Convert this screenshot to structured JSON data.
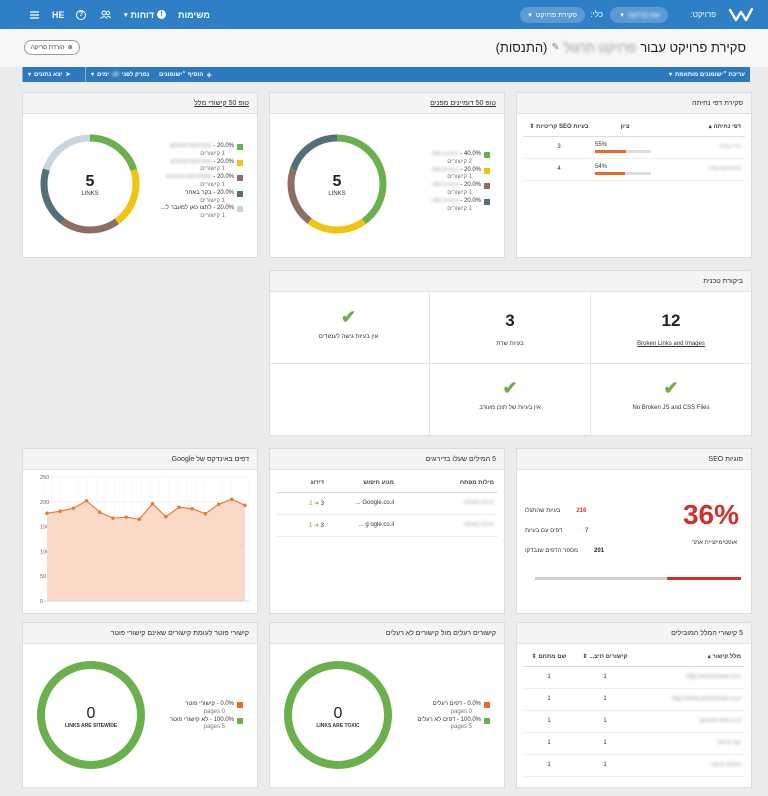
{
  "topbar": {
    "lang": "HE",
    "menu_tasks": "משימות",
    "menu_reports": "דוחות",
    "project_label": "פרויקט:",
    "project_value": "שם פרויקט",
    "tool_label": "כלי:",
    "tool_value": "סקירת פרויקט"
  },
  "header": {
    "title_prefix": "סקירת פרויקט עבור",
    "title_name": "פרויקט תרגול",
    "title_suffix": "(התנסות)",
    "export_label": "הורדת סריקה"
  },
  "actionbar": {
    "custom_reviews": "עריכת ״ישומונים מותאמת",
    "add_widget": "הוסיף ״ישומונים",
    "sort_label": "נמרק לפני",
    "sort_value": "30",
    "sort_suffix": "ימים",
    "export_data": "יצא נתונים"
  },
  "landing": {
    "title": "סקירת דפי נחיתה",
    "col_page": "דפי נחיתה",
    "col_score": "ציון",
    "col_issues": "בעיות SEO קריטיות",
    "rows": [
      {
        "page": "דף הבית",
        "score": 0.55,
        "score_label": "55%",
        "issues": "3"
      },
      {
        "page": "שירותים אתר",
        "score": 0.54,
        "score_label": "54%",
        "issues": "4"
      }
    ]
  },
  "referrers": {
    "title": "טופ 50 דומיינים מפנים",
    "center_value": "5",
    "center_label": "LINKS",
    "colors": [
      "#6ab04c",
      "#f1c40f",
      "#8d6e63",
      "#546e7a"
    ],
    "fractions": [
      0.4,
      0.2,
      0.2,
      0.2
    ],
    "legend": [
      {
        "pct": "40.0%",
        "domain": "site-a.co.il",
        "sub": "2 קישורים"
      },
      {
        "pct": "20.0%",
        "domain": "site-b.co.il",
        "sub": "1 קישורים"
      },
      {
        "pct": "20.0%",
        "domain": "site-c.co.il",
        "sub": "1 קישורים"
      },
      {
        "pct": "20.0%",
        "domain": "site-d.co.il",
        "sub": "1 קישורים"
      }
    ]
  },
  "links": {
    "title": "טופ 50 קישורי מלל",
    "center_value": "5",
    "center_label": "LINKS",
    "colors": [
      "#6ab04c",
      "#f1c40f",
      "#8d6e63",
      "#546e7a",
      "#c8d6e0"
    ],
    "fractions": [
      0.2,
      0.2,
      0.2,
      0.2,
      0.2
    ],
    "legend": [
      {
        "pct": "20.0%",
        "text": "anchor-text-one",
        "sub": "1 קישורים"
      },
      {
        "pct": "20.0%",
        "text": "anchor-text-two",
        "sub": "1 קישורים"
      },
      {
        "pct": "20.0%",
        "text": "anchor-text-three",
        "sub": "1 קישורים"
      },
      {
        "pct": "20.0%",
        "text": "בקר באתר",
        "sub": "1 קישורים"
      },
      {
        "pct": "20.0%",
        "text": "לחצו כאן למעבר ל...",
        "sub": "1 קישורים"
      }
    ]
  },
  "tech": {
    "title": "ביקורת טכנית",
    "c1_value": "12",
    "c1_label": "Broken Links and Images",
    "c2_value": "3",
    "c2_label": "בעיות שרת",
    "c3_label": "אין בעיות גישה לעמודים",
    "c4_label": "No Broken JS and CSS Files",
    "c5_label": "אין בעיות של תוכן מעורב"
  },
  "seo": {
    "title": "סוגיות SEO",
    "score": "36%",
    "score_label": "אופטימיזציית אתר",
    "progress": 0.36,
    "rows": [
      {
        "value": "216",
        "label": "בעיות שהתגלו"
      },
      {
        "value": "7",
        "label": "דפים עם בעיות"
      },
      {
        "value": "201",
        "label": "מספר הדפים שנבדקו"
      }
    ]
  },
  "keywords": {
    "title": "5 המילים שעלו בדירוגים",
    "col_kw": "מילות מפתח",
    "col_engine": "מנוע חיפוש",
    "col_rank": "דירוג",
    "rows": [
      {
        "kw": "מילת מפתח",
        "engine": "Google.co.il ...",
        "rank_from": "3",
        "rank_to": "2"
      },
      {
        "kw": "מילת מפתח",
        "engine": "g ogle.co.il ...",
        "rank_from": "3",
        "rank_to": "1"
      }
    ]
  },
  "google_index": {
    "title": "דפים באינדקס של Google",
    "chart_data": {
      "type": "area",
      "ylim": [
        0,
        250
      ],
      "yticks": [
        0,
        50,
        100,
        150,
        200,
        250
      ],
      "values": [
        177,
        181,
        187,
        202,
        179,
        167,
        169,
        165,
        196,
        170,
        189,
        186,
        176,
        195,
        205,
        193
      ]
    }
  },
  "featured": {
    "title": "5 קישורי המלל המובילים",
    "col_text": "מלל קישור",
    "col_links": "קישורים חיצ...",
    "col_domains": "שם מתחם",
    "rows": [
      {
        "text": "http://anchorlink.co.il",
        "links": "1",
        "domains": "1"
      },
      {
        "text": "http://www.anchorsite.co.il",
        "links": "1",
        "domains": "1"
      },
      {
        "text": "anchor-link.co.il",
        "links": "1",
        "domains": "1"
      },
      {
        "text": "שם קישור",
        "links": "1",
        "domains": "1"
      },
      {
        "text": "טקסט קישור",
        "links": "1",
        "domains": "1"
      }
    ]
  },
  "toxic": {
    "title": "קישורים רעלים מול קישורים לא רעלים",
    "center_value": "0",
    "center_label": "LINKS ARE TOXIC",
    "legend": [
      {
        "pct": "0.0%",
        "text": "דפים רעלים",
        "sub": "pages 0",
        "color": "#e86b2b"
      },
      {
        "pct": "100.0%",
        "text": "דפים לא רעלים",
        "sub": "pages 5",
        "color": "#6ab04c"
      }
    ]
  },
  "sitewide": {
    "title": "קישורי פוטר לעומת קישורים שאינם קישורי פוטר",
    "center_value": "0",
    "center_label": "LINKS ARE SITEWIDE",
    "legend": [
      {
        "pct": "0.0%",
        "text": "קישורי פוטר",
        "sub": "pages 0",
        "color": "#e86b2b"
      },
      {
        "pct": "100.0%",
        "text": "לא קישורי פוטר",
        "sub": "pages 5",
        "color": "#6ab04c"
      }
    ]
  }
}
